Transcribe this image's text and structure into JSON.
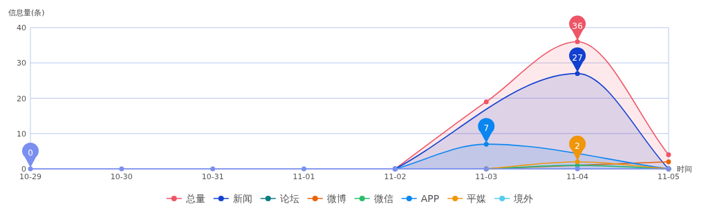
{
  "chart_data": {
    "type": "line",
    "ylabel": "信息量(条)",
    "xlabel": "时间",
    "categories": [
      "10-29",
      "10-30",
      "10-31",
      "11-01",
      "11-02",
      "11-03",
      "11-04",
      "11-05"
    ],
    "ylim": [
      0,
      40
    ],
    "yticks": [
      0,
      10,
      20,
      30,
      40
    ],
    "grid": "y",
    "legend": "bottom",
    "marker": "circle",
    "line_style": "solid",
    "series": [
      {
        "name": "总量",
        "type": "area",
        "color": "#ee5566",
        "values": [
          null,
          null,
          null,
          null,
          0,
          19,
          36,
          4
        ]
      },
      {
        "name": "新闻",
        "type": "area",
        "color": "#1240d0",
        "values": [
          null,
          null,
          null,
          null,
          0,
          null,
          27,
          0
        ]
      },
      {
        "name": "论坛",
        "color": "#0d7d80",
        "values": [
          null,
          null,
          null,
          null,
          null,
          null,
          null,
          null
        ]
      },
      {
        "name": "微博",
        "color": "#e8640c",
        "values": [
          null,
          null,
          null,
          null,
          null,
          0,
          null,
          2
        ]
      },
      {
        "name": "微信",
        "color": "#2dbd6a",
        "values": [
          null,
          null,
          null,
          null,
          null,
          0,
          1,
          0
        ]
      },
      {
        "name": "APP",
        "type": "area",
        "color": "#0b86f0",
        "values": [
          null,
          null,
          null,
          null,
          0,
          7,
          null,
          0
        ]
      },
      {
        "name": "平媒",
        "color": "#f0960a",
        "values": [
          null,
          null,
          null,
          null,
          null,
          0,
          2,
          0
        ]
      },
      {
        "name": "境外",
        "color": "#55ccee",
        "values": [
          null,
          null,
          null,
          null,
          null,
          null,
          null,
          null
        ]
      },
      {
        "color": "#7b8ff0",
        "values": [
          0,
          0,
          0,
          0,
          0,
          0,
          0,
          0
        ]
      }
    ],
    "annotations": [
      {
        "text": "36",
        "x": "11-04",
        "y": 36
      },
      {
        "text": "27",
        "x": "11-04",
        "y": 27
      },
      {
        "text": "7",
        "x": "11-03",
        "y": 7
      },
      {
        "text": "2",
        "x": "11-04",
        "y": 2
      },
      {
        "text": "0",
        "x": "10-29",
        "y": 0
      }
    ]
  }
}
